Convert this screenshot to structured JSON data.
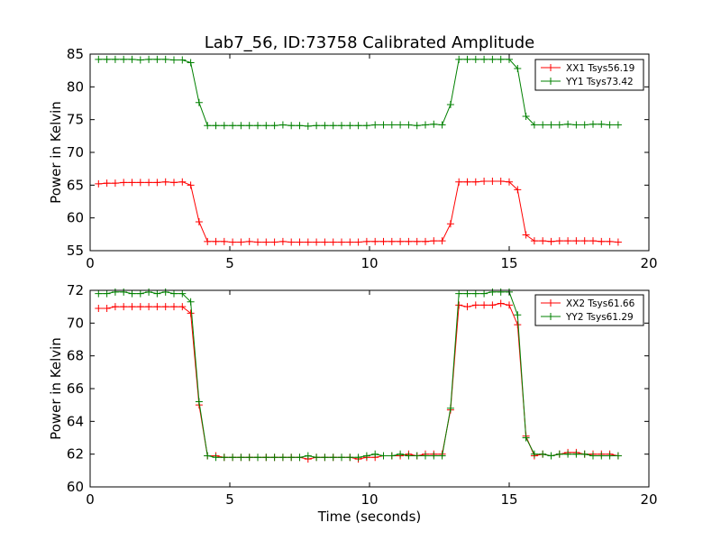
{
  "title": "Lab7_56, ID:73758 Calibrated Amplitude",
  "chart_data": [
    {
      "type": "line",
      "title": "Lab7_56, ID:73758 Calibrated Amplitude",
      "xlabel": "",
      "ylabel": "Power in Kelvin",
      "xlim": [
        0,
        20
      ],
      "ylim": [
        55,
        85
      ],
      "xticks": [
        "0",
        "5",
        "10",
        "15",
        "20"
      ],
      "yticks": [
        "55",
        "60",
        "65",
        "70",
        "75",
        "80",
        "85"
      ],
      "legend_position": "top-right",
      "x": [
        0.3,
        0.6,
        0.9,
        1.2,
        1.5,
        1.8,
        2.1,
        2.4,
        2.7,
        3.0,
        3.3,
        3.6,
        3.9,
        4.2,
        4.5,
        4.8,
        5.1,
        5.4,
        5.7,
        6.0,
        6.3,
        6.6,
        6.9,
        7.2,
        7.5,
        7.8,
        8.1,
        8.4,
        8.7,
        9.0,
        9.3,
        9.6,
        9.9,
        10.2,
        10.5,
        10.8,
        11.1,
        11.4,
        11.7,
        12.0,
        12.3,
        12.6,
        12.9,
        13.2,
        13.5,
        13.8,
        14.1,
        14.4,
        14.7,
        15.0,
        15.3,
        15.6,
        15.9,
        16.2,
        16.5,
        16.8,
        17.1,
        17.4,
        17.7,
        18.0,
        18.3,
        18.6,
        18.9
      ],
      "series": [
        {
          "name": "XX1 Tsys56.19",
          "color": "#ff0000",
          "values": [
            65.2,
            65.3,
            65.3,
            65.4,
            65.4,
            65.4,
            65.4,
            65.4,
            65.5,
            65.4,
            65.5,
            65.0,
            59.4,
            56.4,
            56.4,
            56.4,
            56.3,
            56.3,
            56.4,
            56.3,
            56.3,
            56.3,
            56.4,
            56.3,
            56.3,
            56.3,
            56.3,
            56.3,
            56.3,
            56.3,
            56.3,
            56.3,
            56.4,
            56.4,
            56.4,
            56.4,
            56.4,
            56.4,
            56.4,
            56.4,
            56.5,
            56.5,
            59.1,
            65.5,
            65.5,
            65.5,
            65.6,
            65.6,
            65.6,
            65.5,
            64.3,
            57.4,
            56.5,
            56.5,
            56.4,
            56.5,
            56.5,
            56.5,
            56.5,
            56.5,
            56.4,
            56.4,
            56.3
          ]
        },
        {
          "name": "YY1 Tsys73.42",
          "color": "#008000",
          "values": [
            84.2,
            84.2,
            84.2,
            84.2,
            84.2,
            84.1,
            84.2,
            84.2,
            84.2,
            84.1,
            84.1,
            83.7,
            77.6,
            74.1,
            74.1,
            74.1,
            74.1,
            74.1,
            74.1,
            74.1,
            74.1,
            74.1,
            74.2,
            74.1,
            74.1,
            74.0,
            74.1,
            74.1,
            74.1,
            74.1,
            74.1,
            74.1,
            74.1,
            74.2,
            74.2,
            74.2,
            74.2,
            74.2,
            74.1,
            74.2,
            74.3,
            74.2,
            77.3,
            84.2,
            84.2,
            84.2,
            84.2,
            84.2,
            84.2,
            84.2,
            82.8,
            75.5,
            74.2,
            74.2,
            74.2,
            74.2,
            74.3,
            74.2,
            74.2,
            74.3,
            74.3,
            74.2,
            74.2
          ]
        }
      ]
    },
    {
      "type": "line",
      "title": "",
      "xlabel": "Time (seconds)",
      "ylabel": "Power in Kelvin",
      "xlim": [
        0,
        20
      ],
      "ylim": [
        60,
        72
      ],
      "xticks": [
        "0",
        "5",
        "10",
        "15",
        "20"
      ],
      "yticks": [
        "60",
        "62",
        "64",
        "66",
        "68",
        "70",
        "72"
      ],
      "legend_position": "top-right",
      "x": [
        0.3,
        0.6,
        0.9,
        1.2,
        1.5,
        1.8,
        2.1,
        2.4,
        2.7,
        3.0,
        3.3,
        3.6,
        3.9,
        4.2,
        4.5,
        4.8,
        5.1,
        5.4,
        5.7,
        6.0,
        6.3,
        6.6,
        6.9,
        7.2,
        7.5,
        7.8,
        8.1,
        8.4,
        8.7,
        9.0,
        9.3,
        9.6,
        9.9,
        10.2,
        10.5,
        10.8,
        11.1,
        11.4,
        11.7,
        12.0,
        12.3,
        12.6,
        12.9,
        13.2,
        13.5,
        13.8,
        14.1,
        14.4,
        14.7,
        15.0,
        15.3,
        15.6,
        15.9,
        16.2,
        16.5,
        16.8,
        17.1,
        17.4,
        17.7,
        18.0,
        18.3,
        18.6,
        18.9
      ],
      "series": [
        {
          "name": "XX2 Tsys61.66",
          "color": "#ff0000",
          "values": [
            70.9,
            70.9,
            71.0,
            71.0,
            71.0,
            71.0,
            71.0,
            71.0,
            71.0,
            71.0,
            71.0,
            70.6,
            65.0,
            61.9,
            61.9,
            61.8,
            61.8,
            61.8,
            61.8,
            61.8,
            61.8,
            61.8,
            61.8,
            61.8,
            61.8,
            61.7,
            61.8,
            61.8,
            61.8,
            61.8,
            61.8,
            61.7,
            61.8,
            61.8,
            61.9,
            61.9,
            61.9,
            62.0,
            61.9,
            62.0,
            62.0,
            62.0,
            64.7,
            71.1,
            71.0,
            71.1,
            71.1,
            71.1,
            71.2,
            71.1,
            69.9,
            63.1,
            61.9,
            62.0,
            61.9,
            62.0,
            62.1,
            62.1,
            62.0,
            62.0,
            62.0,
            62.0,
            61.9
          ]
        },
        {
          "name": "YY2 Tsys61.29",
          "color": "#008000",
          "values": [
            71.8,
            71.8,
            71.9,
            71.9,
            71.8,
            71.8,
            71.9,
            71.8,
            71.9,
            71.8,
            71.8,
            71.3,
            65.2,
            61.9,
            61.8,
            61.8,
            61.8,
            61.8,
            61.8,
            61.8,
            61.8,
            61.8,
            61.8,
            61.8,
            61.8,
            61.9,
            61.8,
            61.8,
            61.8,
            61.8,
            61.8,
            61.8,
            61.9,
            62.0,
            61.9,
            61.9,
            62.0,
            61.9,
            61.9,
            61.9,
            61.9,
            61.9,
            64.8,
            71.8,
            71.8,
            71.8,
            71.8,
            71.9,
            71.9,
            71.9,
            70.5,
            63.0,
            62.0,
            62.0,
            61.9,
            62.0,
            62.0,
            62.0,
            62.0,
            61.9,
            61.9,
            61.9,
            61.9
          ]
        }
      ]
    }
  ]
}
